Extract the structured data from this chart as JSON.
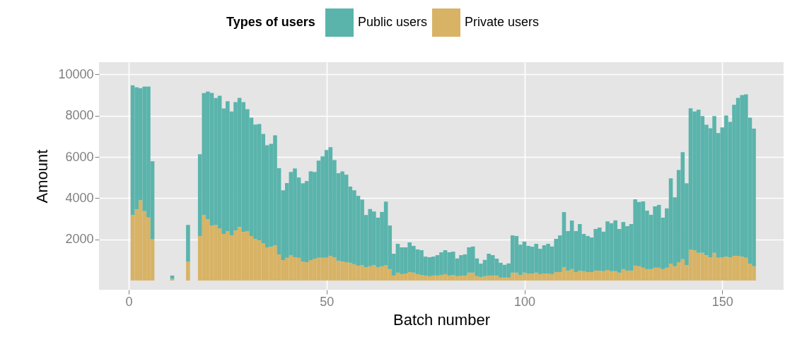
{
  "chart_data": {
    "type": "bar",
    "stacked": true,
    "xlabel": "Batch number",
    "ylabel": "Amount",
    "legend_title": "Types of users",
    "legend": "top",
    "grid": true,
    "xlim": [
      -7.5,
      165.5
    ],
    "xticks": [
      0,
      50,
      100,
      150
    ],
    "ylim": [
      -450,
      10600
    ],
    "yticks": [
      2000,
      4000,
      6000,
      8000,
      10000
    ],
    "x": [
      1,
      2,
      3,
      4,
      5,
      6,
      7,
      8,
      9,
      10,
      11,
      12,
      13,
      14,
      15,
      16,
      17,
      18,
      19,
      20,
      21,
      22,
      23,
      24,
      25,
      26,
      27,
      28,
      29,
      30,
      31,
      32,
      33,
      34,
      35,
      36,
      37,
      38,
      39,
      40,
      41,
      42,
      43,
      44,
      45,
      46,
      47,
      48,
      49,
      50,
      51,
      52,
      53,
      54,
      55,
      56,
      57,
      58,
      59,
      60,
      61,
      62,
      63,
      64,
      65,
      66,
      67,
      68,
      69,
      70,
      71,
      72,
      73,
      74,
      75,
      76,
      77,
      78,
      79,
      80,
      81,
      82,
      83,
      84,
      85,
      86,
      87,
      88,
      89,
      90,
      91,
      92,
      93,
      94,
      95,
      96,
      97,
      98,
      99,
      100,
      101,
      102,
      103,
      104,
      105,
      106,
      107,
      108,
      109,
      110,
      111,
      112,
      113,
      114,
      115,
      116,
      117,
      118,
      119,
      120,
      121,
      122,
      123,
      124,
      125,
      126,
      127,
      128,
      129,
      130,
      131,
      132,
      133,
      134,
      135,
      136,
      137,
      138,
      139,
      140,
      141,
      142,
      143,
      144,
      145,
      146,
      147,
      148,
      149,
      150,
      151,
      152,
      153,
      154,
      155,
      156,
      157,
      158
    ],
    "series": [
      {
        "name": "Private users",
        "color": "#d8b365",
        "values": [
          3180,
          3460,
          3900,
          3370,
          3060,
          2000,
          null,
          null,
          null,
          null,
          80,
          null,
          null,
          null,
          920,
          null,
          null,
          2160,
          3180,
          2980,
          2670,
          2700,
          2530,
          2260,
          2400,
          2190,
          2430,
          2600,
          2360,
          2400,
          2160,
          2020,
          1950,
          1810,
          1610,
          1640,
          1710,
          1270,
          990,
          1100,
          1230,
          1130,
          1100,
          920,
          890,
          990,
          1060,
          1100,
          1100,
          1100,
          1200,
          1130,
          960,
          920,
          890,
          860,
          790,
          720,
          750,
          650,
          690,
          750,
          650,
          690,
          750,
          550,
          240,
          380,
          310,
          340,
          410,
          380,
          310,
          270,
          240,
          210,
          240,
          240,
          270,
          310,
          240,
          270,
          210,
          240,
          240,
          380,
          380,
          210,
          170,
          210,
          240,
          240,
          240,
          140,
          140,
          140,
          380,
          380,
          270,
          380,
          340,
          340,
          380,
          310,
          340,
          340,
          310,
          410,
          410,
          650,
          480,
          550,
          410,
          480,
          450,
          410,
          410,
          480,
          480,
          450,
          510,
          450,
          450,
          380,
          550,
          480,
          480,
          720,
          690,
          620,
          550,
          550,
          620,
          620,
          550,
          620,
          820,
          690,
          890,
          1030,
          750,
          1510,
          1470,
          1340,
          1340,
          1230,
          1130,
          1340,
          1100,
          1130,
          1160,
          1130,
          1200,
          1200,
          1160,
          1100,
          820,
          690
        ]
      },
      {
        "name": "Public users",
        "color": "#5ab4ac",
        "values": [
          6300,
          5920,
          5440,
          6050,
          6360,
          3790,
          null,
          null,
          null,
          null,
          160,
          null,
          null,
          null,
          1780,
          null,
          null,
          3970,
          5920,
          6200,
          6440,
          6160,
          6440,
          6090,
          6300,
          6020,
          6230,
          6270,
          6300,
          5920,
          5750,
          5550,
          5650,
          5310,
          4960,
          5000,
          5340,
          4180,
          3390,
          3630,
          4040,
          4310,
          3900,
          3800,
          3940,
          4310,
          4210,
          4720,
          4930,
          5240,
          5270,
          4720,
          4250,
          4380,
          4250,
          3700,
          3590,
          3390,
          3180,
          2530,
          2780,
          2600,
          2400,
          2640,
          3080,
          2120,
          1060,
          1400,
          1300,
          1270,
          1440,
          1300,
          1200,
          1200,
          920,
          920,
          920,
          990,
          1100,
          1160,
          1130,
          1130,
          860,
          990,
          1030,
          1230,
          1270,
          860,
          650,
          790,
          1060,
          990,
          820,
          720,
          620,
          690,
          1810,
          1780,
          1470,
          1510,
          1340,
          1300,
          1400,
          1230,
          1370,
          1440,
          1340,
          1610,
          1780,
          2670,
          1920,
          2360,
          1990,
          2260,
          1810,
          1750,
          1680,
          2020,
          2090,
          1920,
          2360,
          2330,
          2470,
          2120,
          2290,
          2160,
          2260,
          3220,
          3120,
          3220,
          2840,
          2640,
          2980,
          3050,
          2500,
          2880,
          4140,
          3350,
          4480,
          5200,
          3970,
          6850,
          6740,
          6950,
          6640,
          6330,
          6260,
          6640,
          6060,
          6300,
          6850,
          6570,
          7330,
          7670,
          7840,
          7940,
          7090,
          6680
        ]
      }
    ]
  }
}
